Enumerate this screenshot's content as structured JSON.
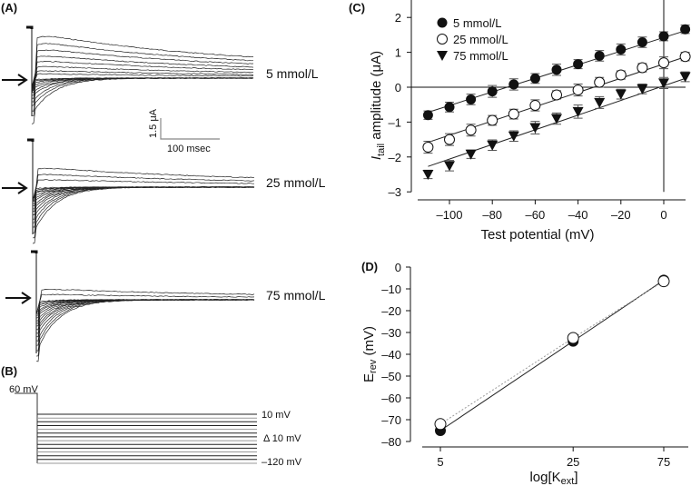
{
  "panels": {
    "A": {
      "label": "(A)",
      "traces": [
        {
          "name": "5 mmol/L",
          "label": "5 mmol/L"
        },
        {
          "name": "25 mmol/L",
          "label": "25 mmol/L"
        },
        {
          "name": "75 mmol/L",
          "label": "75 mmol/L"
        }
      ],
      "scalebar": {
        "current": "1.5 μA",
        "time": "100 msec"
      }
    },
    "B": {
      "label": "(B)",
      "holding": "60 mV",
      "top": "10 mV",
      "step": "Δ 10 mV",
      "bottom": "–120 mV"
    },
    "C": {
      "label": "(C)"
    },
    "D": {
      "label": "(D)"
    }
  },
  "chart_data": [
    {
      "panel": "C",
      "type": "scatter",
      "xlabel": "Test potential (mV)",
      "ylabel": "I_tail amplitude (μA)",
      "ylabel_main": "I",
      "ylabel_sub": "tail",
      "ylabel_rest": " amplitude (μA)",
      "xlim": [
        -115,
        10
      ],
      "ylim": [
        -3,
        2.4
      ],
      "xticks": [
        -100,
        -80,
        -60,
        -40,
        -20,
        0
      ],
      "xtick_labels": [
        "–100",
        "–80",
        "–60",
        "–40",
        "–20",
        "0"
      ],
      "yticks": [
        -3,
        -2,
        -1,
        0,
        1,
        2
      ],
      "ytick_labels": [
        "–3",
        "–2",
        "–1",
        "0",
        "1",
        "2"
      ],
      "legend": "top-left",
      "x": [
        -110,
        -100,
        -90,
        -80,
        -70,
        -60,
        -50,
        -40,
        -30,
        -20,
        -10,
        0,
        10
      ],
      "series": [
        {
          "name": "5 mmol/L",
          "marker": "filled-circle",
          "values": [
            -0.8,
            -0.57,
            -0.35,
            -0.12,
            0.08,
            0.25,
            0.5,
            0.66,
            0.9,
            1.08,
            1.29,
            1.46,
            1.66
          ],
          "errors": [
            0.12,
            0.14,
            0.15,
            0.17,
            0.16,
            0.14,
            0.16,
            0.13,
            0.15,
            0.16,
            0.15,
            0.13,
            0.12
          ],
          "fit": [
            -110,
            -0.72,
            10,
            1.62
          ]
        },
        {
          "name": "25 mmol/L",
          "marker": "open-circle",
          "values": [
            -1.72,
            -1.5,
            -1.23,
            -0.95,
            -0.77,
            -0.52,
            -0.22,
            -0.08,
            0.14,
            0.35,
            0.56,
            0.7,
            0.88
          ],
          "errors": [
            0.17,
            0.17,
            0.17,
            0.14,
            0.14,
            0.16,
            0.12,
            0.17,
            0.14,
            0.12,
            0.12,
            0.17,
            0.12
          ],
          "fit": [
            -110,
            -1.58,
            10,
            0.87
          ]
        },
        {
          "name": "75 mmol/L",
          "marker": "filled-triangle-down",
          "values": [
            -2.5,
            -2.25,
            -1.92,
            -1.66,
            -1.4,
            -1.16,
            -0.9,
            -0.7,
            -0.44,
            -0.2,
            -0.05,
            0.12,
            0.3
          ],
          "errors": [
            0.12,
            0.15,
            0.12,
            0.15,
            0.15,
            0.18,
            0.16,
            0.19,
            0.17,
            0.14,
            0.14,
            0.16,
            0.14
          ],
          "fit": [
            -110,
            -2.27,
            10,
            0.25
          ]
        }
      ]
    },
    {
      "panel": "D",
      "type": "line",
      "xlabel": "log[K_ext]",
      "xlabel_main": "log[K",
      "xlabel_sub": "ext",
      "xlabel_end": "]",
      "ylabel": "E_rev (mV)",
      "ylabel_main": "E",
      "ylabel_sub": "rev",
      "ylabel_rest": " (mV)",
      "categories": [
        "5",
        "25",
        "75"
      ],
      "x": [
        5,
        25,
        75
      ],
      "xscale": "log",
      "ylim": [
        -80,
        0
      ],
      "yticks": [
        0,
        -10,
        -20,
        -30,
        -40,
        -50,
        -60,
        -70,
        -80
      ],
      "ytick_labels": [
        "0",
        "–10",
        "–20",
        "–30",
        "–40",
        "–50",
        "–60",
        "–70",
        "–80"
      ],
      "series": [
        {
          "name": "filled",
          "marker": "filled-circle",
          "line": "solid",
          "values": [
            -75,
            -34,
            -6
          ]
        },
        {
          "name": "open",
          "marker": "open-circle",
          "line": "dotted",
          "values": [
            -72,
            -32.5,
            -6.5
          ]
        }
      ]
    }
  ]
}
